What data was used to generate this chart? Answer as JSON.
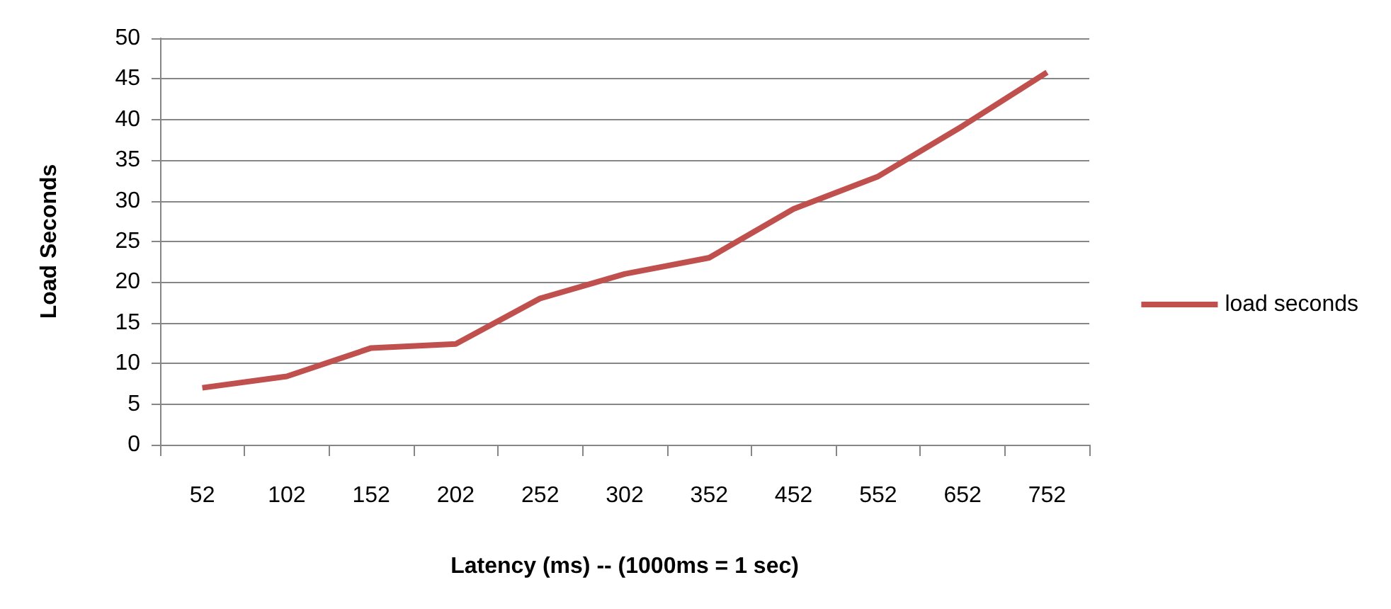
{
  "chart_data": {
    "type": "line",
    "xlabel": "Latency (ms) -- (1000ms = 1 sec)",
    "ylabel": "Load Seconds",
    "categories": [
      "52",
      "102",
      "152",
      "202",
      "252",
      "302",
      "352",
      "452",
      "552",
      "652",
      "752"
    ],
    "series": [
      {
        "name": "load seconds",
        "color": "#c0504d",
        "values": [
          7,
          8.4,
          11.9,
          12.4,
          18,
          21,
          23,
          29,
          33,
          39.2,
          45.8
        ]
      }
    ],
    "ylim": [
      0,
      50
    ],
    "yticks": [
      0,
      5,
      10,
      15,
      20,
      25,
      30,
      35,
      40,
      45,
      50
    ],
    "grid": "y",
    "legend": "right",
    "marker": "none"
  }
}
